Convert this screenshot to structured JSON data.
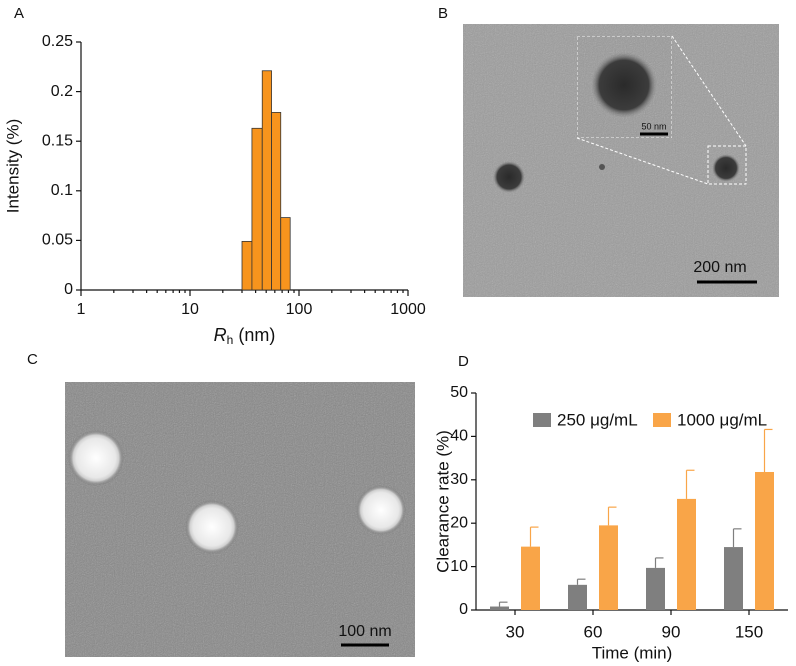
{
  "chart_data": [
    {
      "type": "histogram",
      "panel_label": "A",
      "bins": [
        30,
        37,
        46,
        56,
        68,
        83
      ],
      "values": [
        0.049,
        0.163,
        0.221,
        0.179,
        0.073
      ],
      "color": "#f7941d",
      "xlim": [
        1,
        1000
      ],
      "xticks": [
        1,
        10,
        100,
        1000
      ],
      "xlog": true,
      "minor_ticks": true,
      "ylim": [
        0,
        0.25
      ],
      "yticks": [
        0,
        0.05,
        0.1,
        0.15,
        0.2,
        0.25
      ],
      "xlabel": {
        "symbol": "R",
        "subscript": "h",
        "unit": "(nm)"
      },
      "ylabel": "Intensity (%)"
    },
    {
      "type": "grouped_bar",
      "panel_label": "D",
      "categories": [
        "30",
        "60",
        "90",
        "150"
      ],
      "series": [
        {
          "name": "250 μg/mL",
          "color": "#7f7f7f",
          "values": [
            0.8,
            5.8,
            9.7,
            14.5
          ],
          "errors": [
            1.0,
            1.3,
            2.3,
            4.2
          ]
        },
        {
          "name": "1000 μg/mL",
          "color": "#f9a548",
          "values": [
            14.6,
            19.5,
            25.6,
            31.8
          ],
          "errors": [
            4.5,
            4.2,
            6.6,
            9.8
          ]
        }
      ],
      "ylim": [
        0,
        50
      ],
      "yticks": [
        0,
        10,
        20,
        30,
        40,
        50
      ],
      "xlabel": "Time (min)",
      "ylabel": "Clearance rate (%)",
      "legend": "top"
    }
  ],
  "images": [
    {
      "panel_label": "B",
      "scale_bar": "200 nm",
      "inset_scale_bar": "50 nm"
    },
    {
      "panel_label": "C",
      "scale_bar": "100 nm"
    }
  ]
}
